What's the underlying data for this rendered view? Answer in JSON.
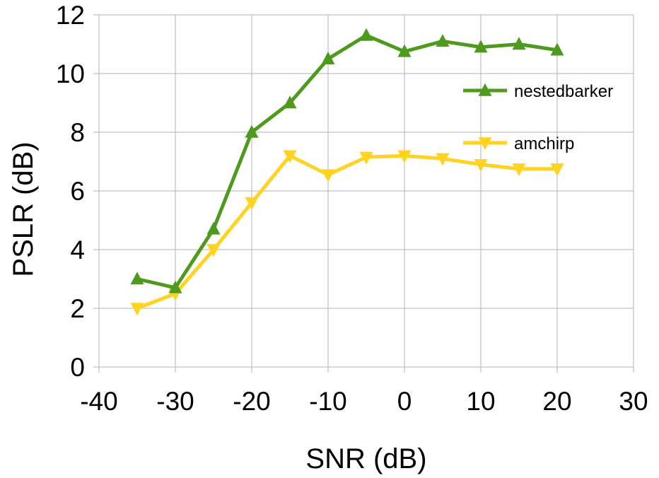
{
  "chart_data": {
    "type": "line",
    "title": "",
    "xlabel": "SNR (dB)",
    "ylabel": "PSLR (dB)",
    "xlim": [
      -40,
      30
    ],
    "ylim": [
      0,
      12
    ],
    "xticks": [
      -40,
      -30,
      -20,
      -10,
      0,
      10,
      20,
      30
    ],
    "yticks": [
      0,
      2,
      4,
      6,
      8,
      10,
      12
    ],
    "grid": true,
    "legend_position": "right",
    "x": [
      -35,
      -30,
      -25,
      -20,
      -15,
      -10,
      -5,
      0,
      5,
      10,
      15,
      20
    ],
    "series": [
      {
        "name": "nestedbarker",
        "color": "#4e9a1c",
        "marker": "triangle-up",
        "values": [
          3.0,
          2.7,
          4.7,
          8.0,
          9.0,
          10.5,
          11.3,
          10.75,
          11.1,
          10.9,
          11.0,
          10.8
        ]
      },
      {
        "name": "amchirp",
        "color": "#ffd320",
        "marker": "triangle-down",
        "values": [
          2.0,
          2.5,
          4.0,
          5.6,
          7.2,
          6.55,
          7.15,
          7.2,
          7.1,
          6.9,
          6.75,
          6.75
        ]
      }
    ]
  }
}
